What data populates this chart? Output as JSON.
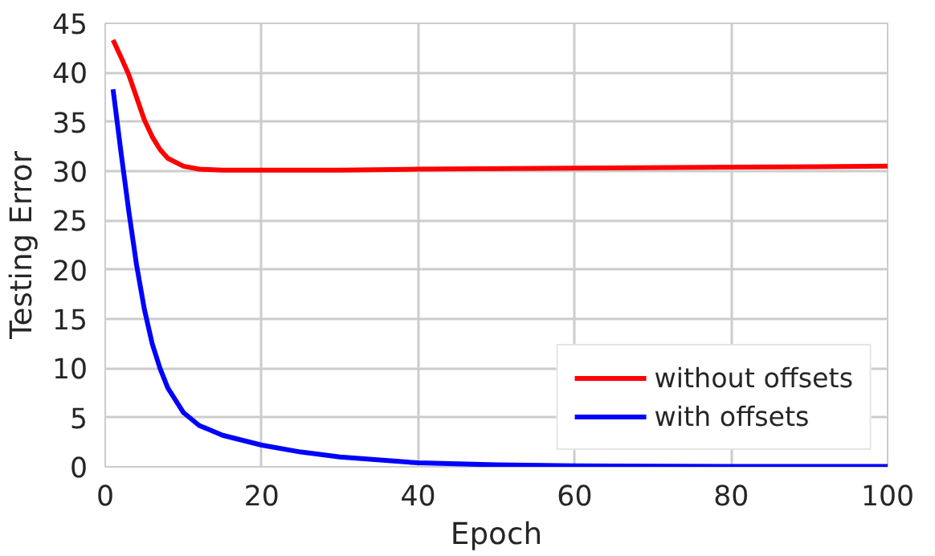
{
  "chart_data": {
    "type": "line",
    "xlabel": "Epoch",
    "ylabel": "Testing Error",
    "xlim": [
      0,
      100
    ],
    "ylim": [
      0,
      45
    ],
    "xticks": [
      0,
      20,
      40,
      60,
      80,
      100
    ],
    "yticks": [
      0,
      5,
      10,
      15,
      20,
      25,
      30,
      35,
      40,
      45
    ],
    "grid": true,
    "legend": "bottom right",
    "line_style": "solid",
    "series": [
      {
        "name": "without offsets",
        "color": "#ff0000",
        "x": [
          1,
          2,
          3,
          4,
          5,
          6,
          7,
          8,
          10,
          12,
          15,
          20,
          30,
          40,
          60,
          80,
          100
        ],
        "values": [
          43.3,
          41.6,
          39.8,
          37.5,
          35.2,
          33.5,
          32.2,
          31.3,
          30.5,
          30.2,
          30.1,
          30.1,
          30.1,
          30.2,
          30.3,
          30.4,
          30.5
        ]
      },
      {
        "name": "with offsets",
        "color": "#0000ff",
        "x": [
          1,
          2,
          3,
          4,
          5,
          6,
          7,
          8,
          10,
          12,
          15,
          20,
          25,
          30,
          40,
          50,
          60,
          80,
          100
        ],
        "values": [
          38.3,
          32.0,
          26.0,
          20.5,
          16.0,
          12.5,
          10.0,
          8.0,
          5.5,
          4.2,
          3.2,
          2.2,
          1.5,
          1.0,
          0.4,
          0.2,
          0.1,
          0.05,
          0.05
        ]
      }
    ]
  }
}
